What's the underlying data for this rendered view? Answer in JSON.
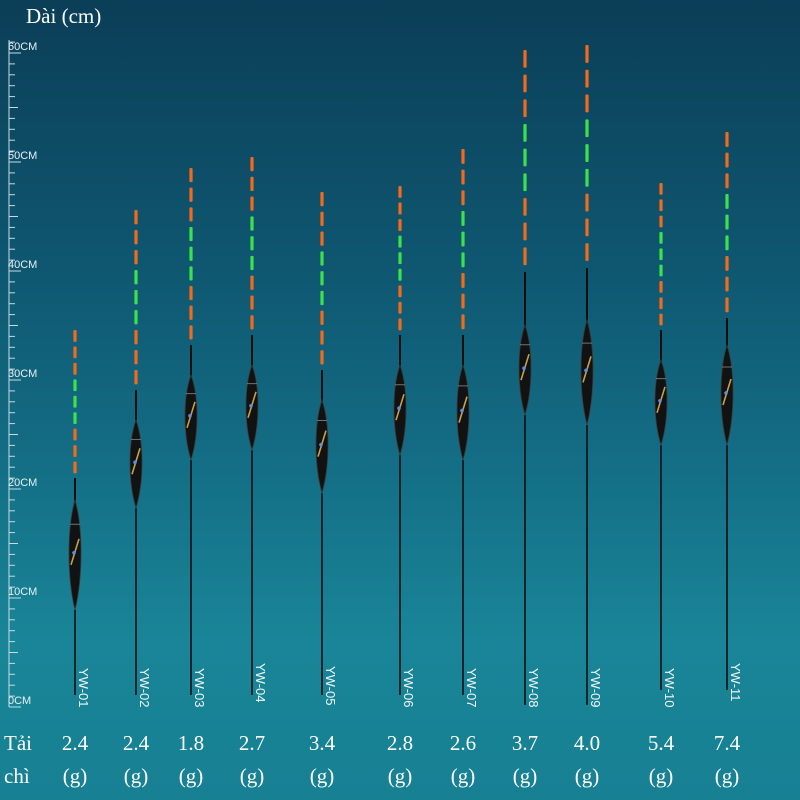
{
  "title": "Dài (cm)",
  "axis": {
    "labels": [
      "0CM",
      "10CM",
      "20CM",
      "30CM",
      "40CM",
      "50CM",
      "60CM"
    ]
  },
  "load_label": {
    "line1": "Tải",
    "line2": "chì"
  },
  "weight_unit": "(g)",
  "colors": {
    "orange": "#f26a1b",
    "green": "#3de24a",
    "stem": "#0e0e0e",
    "body": "#121212",
    "gold": "#c9a14a",
    "axis": "#c7dbe3"
  },
  "floats": [
    {
      "id": "YW-01",
      "weight": "2.4"
    },
    {
      "id": "YW-02",
      "weight": "2.4"
    },
    {
      "id": "YW-03",
      "weight": "1.8"
    },
    {
      "id": "YW-04",
      "weight": "2.7"
    },
    {
      "id": "YW-05",
      "weight": "3.4"
    },
    {
      "id": "YW-06",
      "weight": "2.8"
    },
    {
      "id": "YW-07",
      "weight": "2.6"
    },
    {
      "id": "YW-08",
      "weight": "3.7"
    },
    {
      "id": "YW-09",
      "weight": "4.0"
    },
    {
      "id": "YW-10",
      "weight": "5.4"
    },
    {
      "id": "YW-11",
      "weight": "7.4"
    }
  ]
}
